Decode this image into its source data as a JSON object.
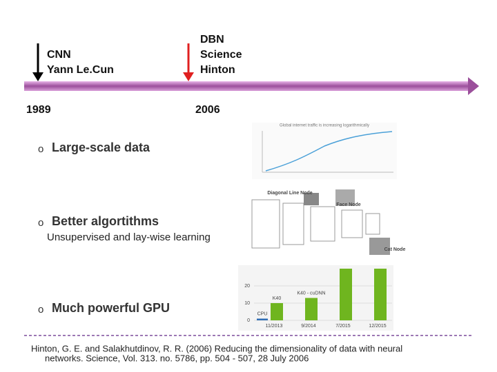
{
  "timeline": {
    "events": [
      {
        "lines": [
          "CNN",
          "Yann Le.Cun"
        ],
        "year": "1989"
      },
      {
        "lines": [
          "DBN",
          "Science",
          "Hinton"
        ],
        "year": "2006"
      }
    ]
  },
  "bullet_marker": "o",
  "bullets": [
    {
      "text": "Large-scale data"
    },
    {
      "text": "Better algortithms",
      "sub": "Unsupervised and lay-wise learning"
    },
    {
      "text": "Much powerful GPU"
    }
  ],
  "figures": {
    "traffic": {
      "title": "Global internet traffic is increasing logarithmically"
    },
    "network": {
      "nodes": [
        "Diagonal Line Node",
        "Face Node",
        "Cat Node"
      ]
    }
  },
  "chart_data": {
    "type": "bar",
    "categories": [
      "11/2013",
      "9/2014",
      "7/2015",
      "12/2015"
    ],
    "values": [
      10,
      13,
      30,
      30
    ],
    "color": "#6fb51f",
    "cpu": {
      "label": "CPU",
      "value": 1,
      "color": "#2f6db5"
    },
    "annotations": [
      "K40",
      "K40 - cuDNN"
    ],
    "ylim": [
      0,
      30
    ],
    "yticks": [
      0,
      10,
      20
    ]
  },
  "citation": [
    "Hinton, G. E. and Salakhutdinov, R. R. (2006) Reducing the dimensionality of data with neural",
    "networks. Science, Vol. 313. no. 5786, pp. 504 - 507, 28 July 2006"
  ]
}
